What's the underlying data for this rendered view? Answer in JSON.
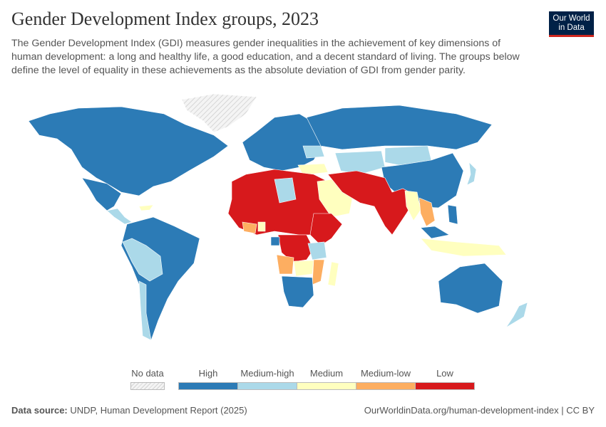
{
  "header": {
    "title": "Gender Development Index groups, 2023",
    "subtitle": "The Gender Development Index (GDI) measures gender inequalities in the achievement of key dimensions of human development: a long and healthy life, a good education, and a decent standard of living. The groups below define the level of equality in these achievements as the absolute deviation of GDI from gender parity.",
    "logo_text": "Our World in Data"
  },
  "colors": {
    "High": "#2c7bb6",
    "Medium-high": "#abd9e9",
    "Medium": "#ffffbf",
    "Medium-low": "#fdae61",
    "Low": "#d7191c",
    "No data": "hatched"
  },
  "legend": {
    "no_data": "No data",
    "categories": [
      "High",
      "Medium-high",
      "Medium",
      "Medium-low",
      "Low"
    ]
  },
  "footer": {
    "source_label": "Data source:",
    "source": "UNDP, Human Development Report (2025)",
    "url": "OurWorldinData.org/human-development-index | CC BY"
  }
}
